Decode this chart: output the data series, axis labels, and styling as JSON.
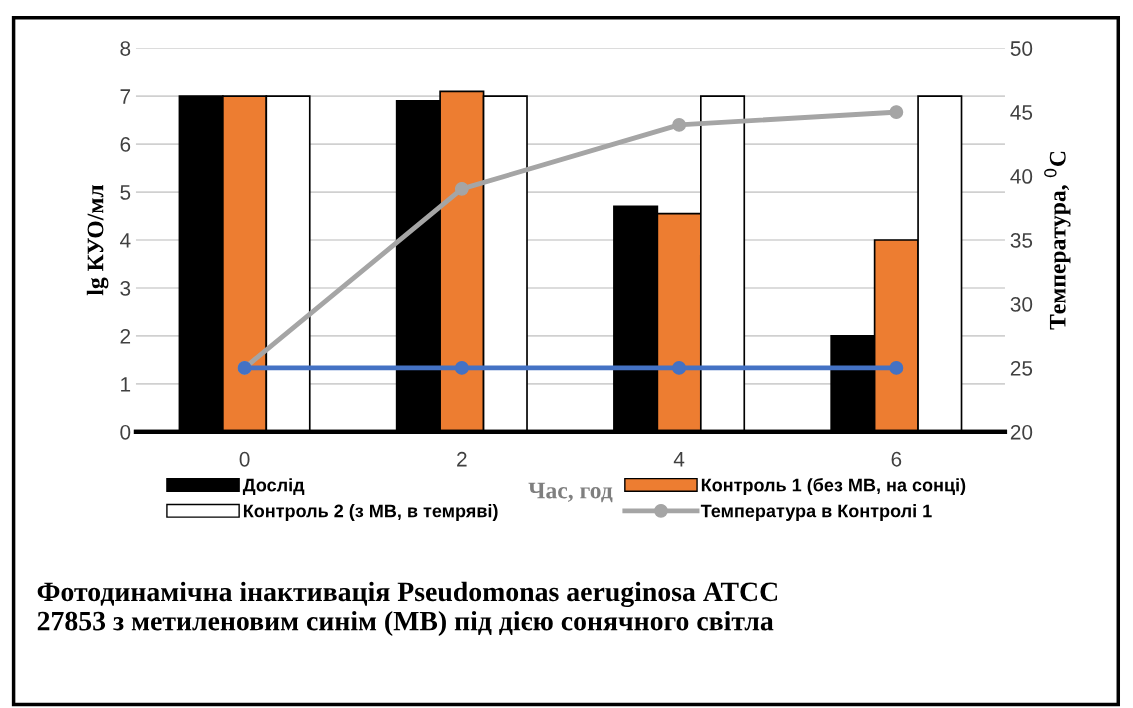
{
  "chart_data": {
    "type": "bar",
    "title": "Фотодинамічна інактивація Pseudomonas aeruginosa АТСС 27853 з метиленовим синім (МВ) під дією сонячного світла",
    "xlabel": "Час, год",
    "ylabel": "lg КУО/мл",
    "y2label": "Температура, $^{0}$C",
    "categories": [
      "0",
      "2",
      "4",
      "6"
    ],
    "series": [
      {
        "name": "Дослід",
        "color": "#000000",
        "values": [
          7,
          6.9,
          4.7,
          2
        ]
      },
      {
        "name": "Контроль 1 (без МВ, на сонці)",
        "color": "#ed7d31",
        "values": [
          7,
          7.1,
          4.55,
          4
        ]
      },
      {
        "name": "Контроль 2 (з МВ, в темряві)",
        "color": "#ffffff",
        "values": [
          7,
          7,
          7,
          7
        ]
      },
      {
        "name": "Температура в Контролі 1",
        "type": "line",
        "axis": "y2",
        "color": "#a5a5a5",
        "values": [
          25,
          39,
          44,
          45
        ]
      },
      {
        "type": "line",
        "axis": "y2",
        "color": "#4472c4",
        "values": [
          25,
          25,
          25,
          25
        ]
      }
    ],
    "ylim": [
      0,
      8
    ],
    "yticks": [
      0,
      1,
      2,
      3,
      4,
      5,
      6,
      7,
      8
    ],
    "y2lim": [
      20,
      50
    ],
    "y2ticks": [
      20,
      25,
      30,
      35,
      40,
      45,
      50
    ],
    "grid": "y",
    "legend": "bottom",
    "marker": "circle"
  }
}
